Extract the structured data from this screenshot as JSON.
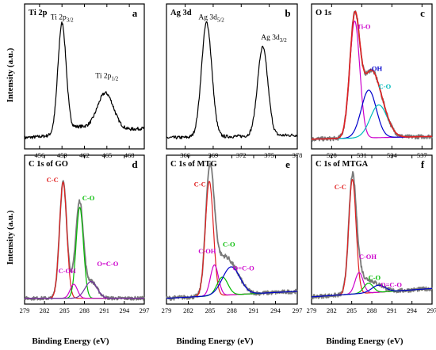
{
  "figure": {
    "ylabel": "Intensity (a.u.)",
    "xlabel": "Binding Energy (eV)"
  },
  "chart_data": [
    {
      "type": "line",
      "id": "a",
      "title": "Ti 2p",
      "panel_letter": "a",
      "xlim": [
        454,
        470
      ],
      "ylim": [
        0,
        1
      ],
      "ticks": [
        456,
        459,
        462,
        465,
        468
      ],
      "annotations": [
        {
          "label": "Ti 2p3/2",
          "main": "Ti 2p",
          "sub": "3/2",
          "x": 459,
          "y": 0.93
        },
        {
          "label": "Ti 2p1/2",
          "main": "Ti 2p",
          "sub": "1/2",
          "x": 465,
          "y": 0.5
        }
      ],
      "series": [
        {
          "color": "#000000",
          "noise": 0.012,
          "baseline": [
            [
              454,
              0.06
            ],
            [
              470,
              0.13
            ]
          ],
          "peaks": [
            [
              459.0,
              0.8,
              0.55
            ],
            [
              464.8,
              0.28,
              1.1
            ],
            [
              461.0,
              0.05,
              1.5
            ]
          ]
        }
      ]
    },
    {
      "type": "line",
      "id": "b",
      "title": "Ag 3d",
      "panel_letter": "b",
      "xlim": [
        364,
        378
      ],
      "ylim": [
        0,
        1
      ],
      "ticks": [
        366,
        369,
        372,
        375,
        378
      ],
      "annotations": [
        {
          "label": "Ag 3d5/2",
          "main": "Ag 3d",
          "sub": "5/2",
          "x": 368.8,
          "y": 0.93
        },
        {
          "label": "Ag 3d3/2",
          "main": "Ag 3d",
          "sub": "3/2",
          "x": 375.5,
          "y": 0.78
        }
      ],
      "series": [
        {
          "color": "#000000",
          "noise": 0.012,
          "baseline": [
            [
              364,
              0.06
            ],
            [
              378,
              0.08
            ]
          ],
          "peaks": [
            [
              368.3,
              0.84,
              0.55
            ],
            [
              374.3,
              0.65,
              0.55
            ]
          ]
        }
      ]
    },
    {
      "type": "line",
      "id": "c",
      "title": "O 1s",
      "panel_letter": "c",
      "xlim": [
        526,
        538
      ],
      "ylim": [
        0,
        1
      ],
      "ticks": [
        528,
        531,
        534,
        537
      ],
      "annotations": [
        {
          "label": "Ti-O",
          "x": 531.2,
          "y": 0.86,
          "color": "#cc00cc"
        },
        {
          "label": "-OH",
          "x": 532.4,
          "y": 0.55,
          "color": "#0000cc"
        },
        {
          "label": "C-O",
          "x": 533.3,
          "y": 0.42,
          "color": "#00bbbb"
        }
      ],
      "series": [
        {
          "name": "data",
          "color": "#7a7a7a",
          "noise": 0.015,
          "width": 1.8,
          "baseline": [
            [
              526,
              0.05
            ],
            [
              538,
              0.07
            ]
          ],
          "peaks": [
            [
              530.3,
              0.86,
              0.5
            ],
            [
              531.7,
              0.35,
              0.75
            ],
            [
              532.7,
              0.24,
              0.85
            ]
          ]
        },
        {
          "name": "Ti-O",
          "color": "#cc00cc",
          "baseline": [
            [
              526,
              0.05
            ],
            [
              538,
              0.07
            ]
          ],
          "peaks": [
            [
              530.3,
              0.86,
              0.5
            ]
          ]
        },
        {
          "name": "-OH",
          "color": "#0000cc",
          "baseline": [
            [
              526,
              0.05
            ],
            [
              538,
              0.07
            ]
          ],
          "peaks": [
            [
              531.7,
              0.35,
              0.75
            ]
          ]
        },
        {
          "name": "C-O",
          "color": "#00bbbb",
          "baseline": [
            [
              526,
              0.05
            ],
            [
              538,
              0.07
            ]
          ],
          "peaks": [
            [
              532.7,
              0.24,
              0.85
            ]
          ]
        },
        {
          "name": "fit",
          "color": "#e02020",
          "width": 1.6,
          "baseline": [
            [
              526,
              0.05
            ],
            [
              538,
              0.07
            ]
          ],
          "peaks": [
            [
              530.3,
              0.86,
              0.5
            ],
            [
              531.7,
              0.35,
              0.75
            ],
            [
              532.7,
              0.24,
              0.85
            ]
          ]
        }
      ]
    },
    {
      "type": "line",
      "id": "d",
      "title": "C 1s of GO",
      "panel_letter": "d",
      "xlim": [
        279,
        297
      ],
      "ylim": [
        0,
        1
      ],
      "ticks": [
        279,
        282,
        285,
        288,
        291,
        294,
        297
      ],
      "annotations": [
        {
          "label": "C-C",
          "x": 283.2,
          "y": 0.85,
          "color": "#e02020"
        },
        {
          "label": "C-O",
          "x": 288.6,
          "y": 0.72,
          "color": "#00bb00"
        },
        {
          "label": "C-OH",
          "x": 285.4,
          "y": 0.2,
          "color": "#cc00cc"
        },
        {
          "label": "O=C-O",
          "x": 291.5,
          "y": 0.25,
          "color": "#cc00cc"
        }
      ],
      "series": [
        {
          "name": "data",
          "color": "#7a7a7a",
          "noise": 0.012,
          "width": 1.8,
          "baseline": [
            [
              279,
              0.02
            ],
            [
              297,
              0.02
            ]
          ],
          "peaks": [
            [
              284.8,
              0.83,
              0.55
            ],
            [
              287.3,
              0.65,
              0.55
            ],
            [
              286.4,
              0.1,
              0.55
            ],
            [
              289.0,
              0.12,
              0.9
            ]
          ]
        },
        {
          "name": "C-C",
          "color": "#e02020",
          "baseline": [
            [
              279,
              0.02
            ],
            [
              297,
              0.02
            ]
          ],
          "peaks": [
            [
              284.8,
              0.83,
              0.55
            ]
          ]
        },
        {
          "name": "C-O",
          "color": "#00bb00",
          "baseline": [
            [
              279,
              0.02
            ],
            [
              297,
              0.02
            ]
          ],
          "peaks": [
            [
              287.3,
              0.65,
              0.55
            ]
          ]
        },
        {
          "name": "C-OH",
          "color": "#cc00cc",
          "baseline": [
            [
              279,
              0.02
            ],
            [
              297,
              0.02
            ]
          ],
          "peaks": [
            [
              286.4,
              0.1,
              0.55
            ]
          ]
        },
        {
          "name": "O=C-O",
          "color": "#7030a0",
          "baseline": [
            [
              279,
              0.02
            ],
            [
              297,
              0.02
            ]
          ],
          "peaks": [
            [
              289.0,
              0.12,
              0.9
            ]
          ]
        }
      ]
    },
    {
      "type": "line",
      "id": "e",
      "title": "C 1s of MTG",
      "panel_letter": "e",
      "xlim": [
        279,
        297
      ],
      "ylim": [
        0,
        1
      ],
      "ticks": [
        279,
        282,
        285,
        288,
        291,
        294,
        297
      ],
      "annotations": [
        {
          "label": "C-C",
          "x": 283.6,
          "y": 0.82,
          "color": "#e02020"
        },
        {
          "label": "C-OH",
          "x": 284.6,
          "y": 0.34,
          "color": "#cc00cc"
        },
        {
          "label": "C-O",
          "x": 287.6,
          "y": 0.39,
          "color": "#00bb00"
        },
        {
          "label": "O=C-O",
          "x": 289.6,
          "y": 0.22,
          "color": "#cc00cc"
        }
      ],
      "series": [
        {
          "name": "data",
          "color": "#7a7a7a",
          "noise": 0.015,
          "width": 1.8,
          "baseline": [
            [
              279,
              0.02
            ],
            [
              297,
              0.07
            ]
          ],
          "peaks": [
            [
              284.9,
              0.82,
              0.55
            ],
            [
              285.6,
              0.22,
              0.55
            ],
            [
              286.7,
              0.13,
              0.75
            ],
            [
              287.9,
              0.2,
              1.2
            ]
          ]
        },
        {
          "name": "C-C",
          "color": "#e02020",
          "baseline": [
            [
              279,
              0.02
            ],
            [
              297,
              0.07
            ]
          ],
          "peaks": [
            [
              284.9,
              0.82,
              0.55
            ]
          ]
        },
        {
          "name": "C-OH",
          "color": "#cc00cc",
          "baseline": [
            [
              279,
              0.02
            ],
            [
              297,
              0.07
            ]
          ],
          "peaks": [
            [
              285.6,
              0.22,
              0.55
            ]
          ]
        },
        {
          "name": "C-O",
          "color": "#00bb00",
          "baseline": [
            [
              279,
              0.02
            ],
            [
              297,
              0.07
            ]
          ],
          "peaks": [
            [
              286.7,
              0.13,
              0.75
            ]
          ]
        },
        {
          "name": "O=C-O",
          "color": "#0000cc",
          "baseline": [
            [
              279,
              0.02
            ],
            [
              297,
              0.07
            ]
          ],
          "peaks": [
            [
              287.9,
              0.2,
              1.2
            ]
          ]
        }
      ]
    },
    {
      "type": "line",
      "id": "f",
      "title": "C 1s of MTGA",
      "panel_letter": "f",
      "xlim": [
        279,
        297
      ],
      "ylim": [
        0,
        1
      ],
      "ticks": [
        279,
        282,
        285,
        288,
        291,
        294,
        297
      ],
      "annotations": [
        {
          "label": "C-C",
          "x": 283.3,
          "y": 0.8,
          "color": "#e02020"
        },
        {
          "label": "C-OH",
          "x": 287.4,
          "y": 0.3,
          "color": "#cc00cc"
        },
        {
          "label": "C-O",
          "x": 288.4,
          "y": 0.15,
          "color": "#00bb00"
        },
        {
          "label": "O=C-O",
          "x": 290.9,
          "y": 0.1,
          "color": "#cc00cc"
        }
      ],
      "series": [
        {
          "name": "data",
          "color": "#7a7a7a",
          "noise": 0.015,
          "width": 1.8,
          "baseline": [
            [
              279,
              0.03
            ],
            [
              297,
              0.09
            ]
          ],
          "peaks": [
            [
              285.1,
              0.82,
              0.55
            ],
            [
              286.1,
              0.15,
              0.6
            ],
            [
              287.5,
              0.07,
              0.7
            ],
            [
              289.0,
              0.05,
              1.0
            ]
          ]
        },
        {
          "name": "C-C",
          "color": "#e02020",
          "baseline": [
            [
              279,
              0.03
            ],
            [
              297,
              0.09
            ]
          ],
          "peaks": [
            [
              285.1,
              0.82,
              0.55
            ]
          ]
        },
        {
          "name": "C-OH",
          "color": "#cc00cc",
          "baseline": [
            [
              279,
              0.03
            ],
            [
              297,
              0.09
            ]
          ],
          "peaks": [
            [
              286.1,
              0.15,
              0.6
            ]
          ]
        },
        {
          "name": "C-O",
          "color": "#00bb00",
          "baseline": [
            [
              279,
              0.03
            ],
            [
              297,
              0.09
            ]
          ],
          "peaks": [
            [
              287.5,
              0.07,
              0.7
            ]
          ]
        },
        {
          "name": "O=C-O",
          "color": "#0000cc",
          "baseline": [
            [
              279,
              0.03
            ],
            [
              297,
              0.09
            ]
          ],
          "peaks": [
            [
              289.0,
              0.05,
              1.0
            ]
          ]
        }
      ]
    }
  ]
}
